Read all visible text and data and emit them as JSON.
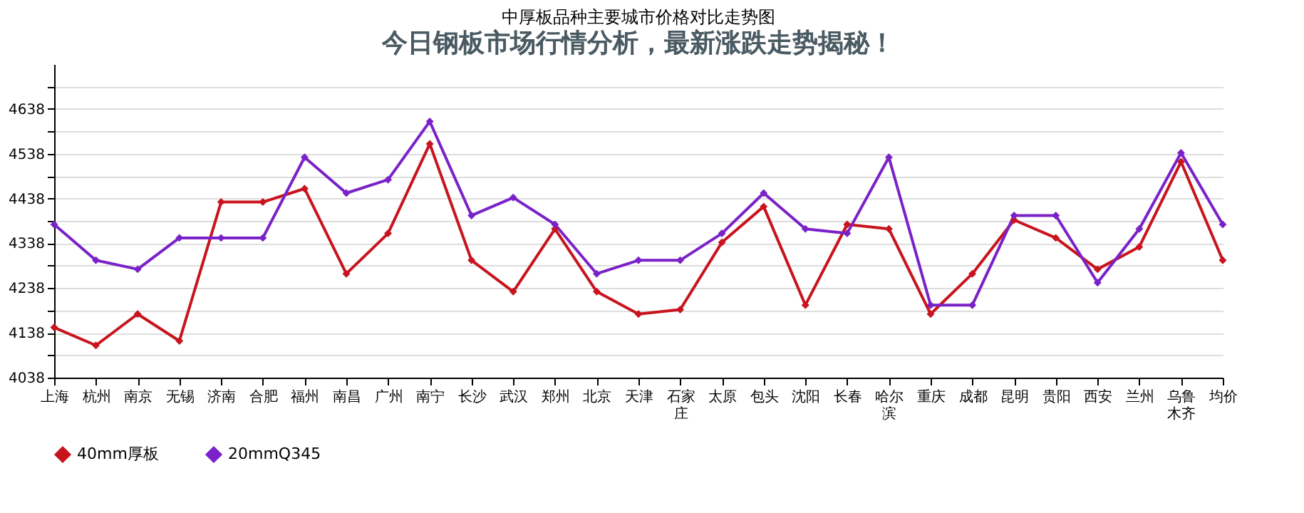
{
  "chart_data": {
    "type": "line",
    "title": "中厚板品种主要城市价格对比走势图",
    "subtitle": "今日钢板市场行情分析，最新涨跌走势揭秘！",
    "categories": [
      "上海",
      "杭州",
      "南京",
      "无锡",
      "济南",
      "合肥",
      "福州",
      "南昌",
      "广州",
      "南宁",
      "长沙",
      "武汉",
      "郑州",
      "北京",
      "天津",
      "石家庄",
      "太原",
      "包头",
      "沈阳",
      "长春",
      "哈尔滨",
      "重庆",
      "成都",
      "昆明",
      "贵阳",
      "西安",
      "兰州",
      "乌鲁木齐",
      "均价"
    ],
    "series": [
      {
        "name": "40mm厚板",
        "color": "#c8141e",
        "values": [
          4150,
          4110,
          4180,
          4120,
          4430,
          4430,
          4460,
          4270,
          4360,
          4560,
          4300,
          4230,
          4370,
          4230,
          4180,
          4190,
          4340,
          4420,
          4200,
          4380,
          4370,
          4180,
          4270,
          4390,
          4350,
          4280,
          4330,
          4520,
          4300
        ]
      },
      {
        "name": "20mmQ345",
        "color": "#7a22c8",
        "values": [
          4380,
          4300,
          4280,
          4350,
          4350,
          4350,
          4530,
          4450,
          4480,
          4610,
          4400,
          4440,
          4380,
          4270,
          4300,
          4300,
          4360,
          4450,
          4370,
          4360,
          4530,
          4200,
          4200,
          4400,
          4400,
          4250,
          4370,
          4540,
          4380
        ]
      }
    ],
    "ylim": [
      4038,
      4738
    ],
    "yticks": [
      4038,
      {
        "value": 4088,
        "label": null
      },
      4138,
      {
        "value": 4188,
        "label": null
      },
      4238,
      {
        "value": 4288,
        "label": null
      },
      4338,
      {
        "value": 4388,
        "label": null
      },
      4438,
      {
        "value": 4488,
        "label": null
      },
      4538,
      {
        "value": 4588,
        "label": null
      },
      4638,
      {
        "value": 4688,
        "label": null
      }
    ],
    "grid": "y",
    "legend": "bottom",
    "marker": "diamond",
    "line_style": "solid"
  }
}
